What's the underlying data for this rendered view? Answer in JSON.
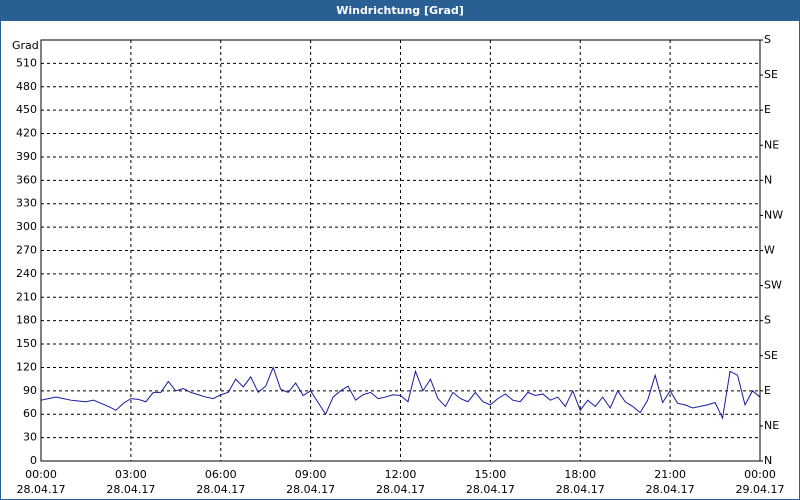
{
  "chart_data": {
    "type": "line",
    "title": "Windrichtung [Grad]",
    "y_label": "Grad",
    "x": [
      0,
      0.25,
      0.5,
      0.75,
      1,
      1.25,
      1.5,
      1.75,
      2,
      2.25,
      2.5,
      2.75,
      3,
      3.25,
      3.5,
      3.75,
      4,
      4.25,
      4.5,
      4.75,
      5,
      5.25,
      5.5,
      5.75,
      6,
      6.25,
      6.5,
      6.75,
      7,
      7.25,
      7.5,
      7.75,
      8,
      8.25,
      8.5,
      8.75,
      9,
      9.25,
      9.5,
      9.75,
      10,
      10.25,
      10.5,
      10.75,
      11,
      11.25,
      11.5,
      11.75,
      12,
      12.25,
      12.5,
      12.75,
      13,
      13.25,
      13.5,
      13.75,
      14,
      14.25,
      14.5,
      14.75,
      15,
      15.25,
      15.5,
      15.75,
      16,
      16.25,
      16.5,
      16.75,
      17,
      17.25,
      17.5,
      17.75,
      18,
      18.25,
      18.5,
      18.75,
      19,
      19.25,
      19.5,
      19.75,
      20,
      20.25,
      20.5,
      20.75,
      21,
      21.25,
      21.5,
      21.75,
      22,
      22.25,
      22.5,
      22.75,
      23,
      23.25,
      23.5,
      23.75,
      24
    ],
    "series": [
      {
        "name": "Windrichtung",
        "color": "#1a1aa0",
        "values": [
          78,
          80,
          82,
          80,
          78,
          77,
          76,
          78,
          74,
          70,
          65,
          74,
          80,
          79,
          76,
          88,
          88,
          102,
          90,
          93,
          88,
          85,
          82,
          80,
          85,
          88,
          105,
          95,
          108,
          88,
          96,
          120,
          92,
          88,
          100,
          84,
          90,
          75,
          60,
          82,
          90,
          96,
          78,
          85,
          88,
          80,
          82,
          85,
          84,
          76,
          115,
          90,
          105,
          80,
          70,
          88,
          80,
          76,
          88,
          76,
          72,
          80,
          86,
          78,
          76,
          88,
          84,
          86,
          78,
          82,
          70,
          90,
          65,
          78,
          70,
          82,
          68,
          90,
          76,
          70,
          62,
          78,
          110,
          75,
          90,
          74,
          72,
          68,
          70,
          72,
          75,
          55,
          115,
          110,
          72,
          90,
          82
        ]
      }
    ],
    "xlim": [
      0,
      24
    ],
    "xticks": [
      {
        "value": 0,
        "label": "00:00",
        "date": "28.04.17"
      },
      {
        "value": 3,
        "label": "03:00",
        "date": "28.04.17"
      },
      {
        "value": 6,
        "label": "06:00",
        "date": "28.04.17"
      },
      {
        "value": 9,
        "label": "09:00",
        "date": "28.04.17"
      },
      {
        "value": 12,
        "label": "12:00",
        "date": "28.04.17"
      },
      {
        "value": 15,
        "label": "15:00",
        "date": "28.04.17"
      },
      {
        "value": 18,
        "label": "18:00",
        "date": "28.04.17"
      },
      {
        "value": 21,
        "label": "21:00",
        "date": "28.04.17"
      },
      {
        "value": 24,
        "label": "00:00",
        "date": "29.04.17"
      }
    ],
    "ylim": [
      0,
      540
    ],
    "yticks": [
      0,
      30,
      60,
      90,
      120,
      150,
      180,
      210,
      240,
      270,
      300,
      330,
      360,
      390,
      420,
      450,
      480,
      510
    ],
    "y2lim": [
      0,
      540
    ],
    "y2ticks": [
      {
        "value": 0,
        "label": "N"
      },
      {
        "value": 45,
        "label": "NE"
      },
      {
        "value": 90,
        "label": "E"
      },
      {
        "value": 135,
        "label": "SE"
      },
      {
        "value": 180,
        "label": "S"
      },
      {
        "value": 225,
        "label": "SW"
      },
      {
        "value": 270,
        "label": "W"
      },
      {
        "value": 315,
        "label": "NW"
      },
      {
        "value": 360,
        "label": "N"
      },
      {
        "value": 405,
        "label": "NE"
      },
      {
        "value": 450,
        "label": "E"
      },
      {
        "value": 495,
        "label": "SE"
      },
      {
        "value": 540,
        "label": "S"
      }
    ],
    "grid": true
  }
}
